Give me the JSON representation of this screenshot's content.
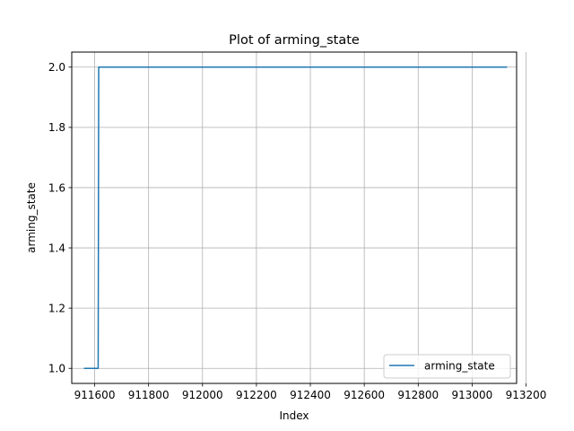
{
  "chart_data": {
    "type": "line",
    "title": "Plot of arming_state",
    "xlabel": "Index",
    "ylabel": "arming_state",
    "xlim": [
      911515,
      913165
    ],
    "ylim": [
      0.95,
      2.05
    ],
    "xticks": [
      911600,
      911800,
      912000,
      912200,
      912400,
      912600,
      912800,
      913000,
      913200
    ],
    "yticks": [
      1.0,
      1.2,
      1.4,
      1.6,
      1.8,
      2.0
    ],
    "xtick_labels": [
      "911600",
      "911800",
      "912000",
      "912200",
      "912400",
      "912600",
      "912800",
      "913000",
      "913200"
    ],
    "ytick_labels": [
      "1.0",
      "1.2",
      "1.4",
      "1.6",
      "1.8",
      "2.0"
    ],
    "grid": true,
    "legend_position": "lower-right",
    "series": [
      {
        "name": "arming_state",
        "color": "#1f77b4",
        "x": [
          911560,
          911613,
          911615,
          913130
        ],
        "y": [
          1.0,
          1.0,
          2.0,
          2.0
        ]
      }
    ]
  }
}
